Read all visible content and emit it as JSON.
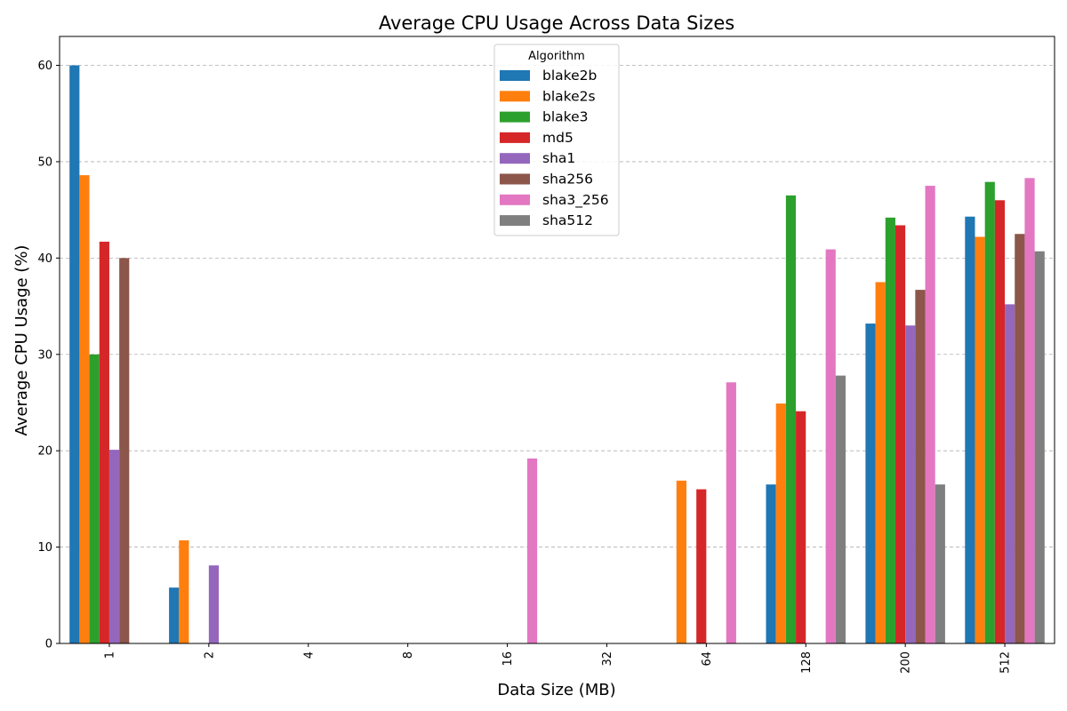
{
  "chart_data": {
    "type": "bar",
    "title": "Average CPU Usage Across Data Sizes",
    "xlabel": "Data Size (MB)",
    "ylabel": "Average CPU Usage (%)",
    "categories": [
      "1",
      "2",
      "4",
      "8",
      "16",
      "32",
      "64",
      "128",
      "200",
      "512"
    ],
    "ylim": [
      0,
      63
    ],
    "yticks": [
      0,
      10,
      20,
      30,
      40,
      50,
      60
    ],
    "grid": "y-dashed",
    "legend": {
      "title": "Algorithm",
      "placement": "top-center"
    },
    "series": [
      {
        "name": "blake2b",
        "color": "#1f77b4",
        "values": [
          60.0,
          5.8,
          0,
          0,
          0,
          0,
          0,
          16.5,
          33.2,
          44.3
        ]
      },
      {
        "name": "blake2s",
        "color": "#ff7f0e",
        "values": [
          48.6,
          10.7,
          0,
          0,
          0,
          0,
          16.9,
          24.9,
          37.5,
          42.2
        ]
      },
      {
        "name": "blake3",
        "color": "#2ca02c",
        "values": [
          30.0,
          0,
          0,
          0,
          0,
          0,
          0,
          46.5,
          44.2,
          47.9
        ]
      },
      {
        "name": "md5",
        "color": "#d62728",
        "values": [
          41.7,
          0,
          0,
          0,
          0,
          0,
          16.0,
          24.1,
          43.4,
          46.0
        ]
      },
      {
        "name": "sha1",
        "color": "#9467bd",
        "values": [
          20.1,
          8.1,
          0,
          0,
          0,
          0,
          0,
          0,
          33.0,
          35.2
        ]
      },
      {
        "name": "sha256",
        "color": "#8c564b",
        "values": [
          40.0,
          0,
          0,
          0,
          0,
          0,
          0,
          0,
          36.7,
          42.5
        ]
      },
      {
        "name": "sha3_256",
        "color": "#e377c2",
        "values": [
          0,
          0,
          0,
          0,
          19.2,
          0,
          27.1,
          40.9,
          47.5,
          48.3
        ]
      },
      {
        "name": "sha512",
        "color": "#7f7f7f",
        "values": [
          0,
          0,
          0,
          0,
          0,
          0,
          0,
          27.8,
          16.5,
          40.7
        ]
      }
    ]
  }
}
